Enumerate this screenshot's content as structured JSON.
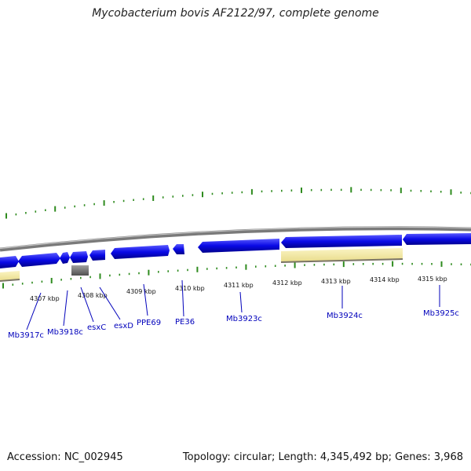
{
  "title": "Mycobacterium bovis AF2122/97, complete genome",
  "footer": {
    "accession": "Accession: NC_002945",
    "topology": "Topology: circular; Length: 4,345,492 bp; Genes: 3,968"
  },
  "colors": {
    "backbone": "#8c8c8c",
    "gene_forward": "#0a0ae6",
    "gene_other": "#6e6e6e",
    "feature_track": "#f2e9a0",
    "ticks": "#2e8b1e",
    "gene_label": "#0000bb"
  },
  "position_ticks": [
    "4307 kbp",
    "4308 kbp",
    "4309 kbp",
    "4310 kbp",
    "4311 kbp",
    "4312 kbp",
    "4313 kbp",
    "4314 kbp",
    "4315 kbp"
  ],
  "gene_labels": [
    "Mb3917c",
    "Mb3918c",
    "esxC",
    "esxD",
    "PPE69",
    "PE36",
    "Mb3923c",
    "Mb3924c",
    "Mb3925c"
  ]
}
